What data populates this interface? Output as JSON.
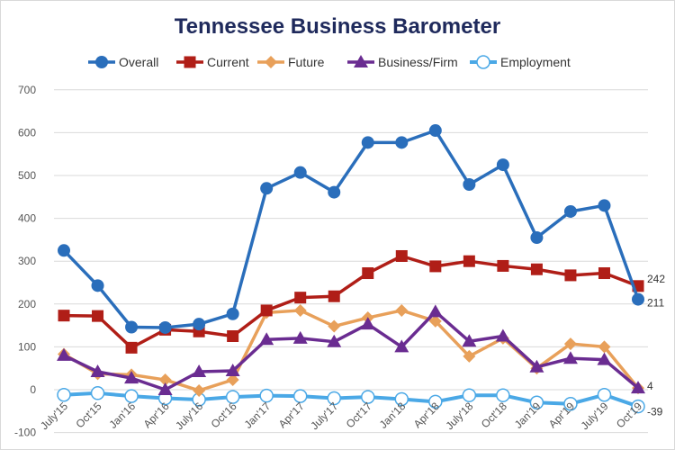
{
  "chart_data": {
    "type": "line",
    "title": "Tennessee Business Barometer",
    "xlabel": "",
    "ylabel": "",
    "ylim": [
      -100,
      700
    ],
    "yticks": [
      -100,
      0,
      100,
      200,
      300,
      400,
      500,
      600,
      700
    ],
    "grid": true,
    "legend_position": "top",
    "categories": [
      "July'15",
      "Oct'15",
      "Jan'16",
      "Apr'16",
      "July'16",
      "Oct'16",
      "Jan'17",
      "Apr'17",
      "July'17",
      "Oct'17",
      "Jan'18",
      "Apr'18",
      "July'18",
      "Oct'18",
      "Jan'19",
      "Apr'19",
      "July'19",
      "Oct'19"
    ],
    "series": [
      {
        "name": "Overall",
        "color": "#2a6ebb",
        "marker": "circle",
        "values": [
          325,
          243,
          146,
          145,
          153,
          177,
          470,
          507,
          461,
          577,
          577,
          605,
          479,
          525,
          355,
          416,
          430,
          211
        ],
        "end_label": "211"
      },
      {
        "name": "Current",
        "color": "#b01e17",
        "marker": "square",
        "values": [
          173,
          172,
          98,
          140,
          136,
          125,
          185,
          215,
          218,
          272,
          312,
          288,
          300,
          289,
          281,
          267,
          272,
          242
        ],
        "end_label": "242"
      },
      {
        "name": "Future",
        "color": "#e8a05a",
        "marker": "diamond",
        "values": [
          83,
          37,
          35,
          23,
          -2,
          23,
          180,
          185,
          148,
          168,
          185,
          160,
          78,
          120,
          50,
          107,
          100,
          4
        ],
        "end_label": ""
      },
      {
        "name": "Business/Firm",
        "color": "#6a2c91",
        "marker": "triangle",
        "values": [
          80,
          42,
          27,
          0,
          42,
          44,
          117,
          120,
          112,
          153,
          100,
          182,
          113,
          125,
          53,
          73,
          70,
          4
        ],
        "end_label": "4"
      },
      {
        "name": "Employment",
        "color": "#4aa8e6",
        "marker": "open-circle",
        "values": [
          -12,
          -8,
          -15,
          -20,
          -23,
          -17,
          -14,
          -15,
          -20,
          -17,
          -22,
          -28,
          -13,
          -13,
          -30,
          -33,
          -12,
          -39
        ],
        "end_label": "-39"
      }
    ]
  }
}
